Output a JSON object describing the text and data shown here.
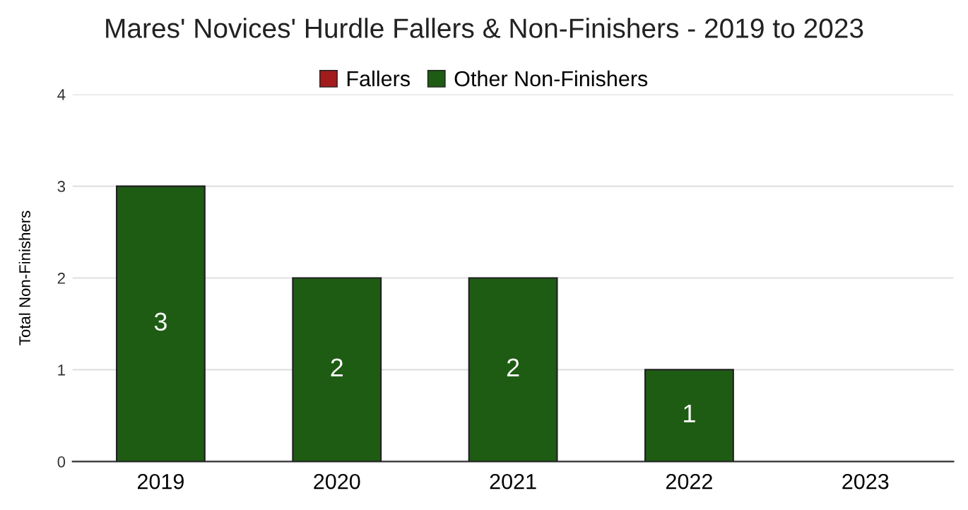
{
  "chart_data": {
    "type": "bar",
    "title": "Mares' Novices' Hurdle Fallers & Non-Finishers - 2019 to 2023",
    "ylabel": "Total Non-Finishers",
    "categories": [
      "2019",
      "2020",
      "2021",
      "2022",
      "2023"
    ],
    "series": [
      {
        "name": "Fallers",
        "color": "#a31c1c",
        "values": [
          0,
          0,
          0,
          0,
          0
        ]
      },
      {
        "name": "Other Non-Finishers",
        "color": "#1e5c14",
        "values": [
          3,
          2,
          2,
          1,
          0
        ],
        "value_labels": [
          "3",
          "2",
          "2",
          "1",
          null
        ]
      }
    ],
    "stacked": true,
    "ylim": [
      0,
      4
    ],
    "yticks": [
      0,
      1,
      2,
      3,
      4
    ],
    "grid": "y",
    "legend": "top"
  }
}
